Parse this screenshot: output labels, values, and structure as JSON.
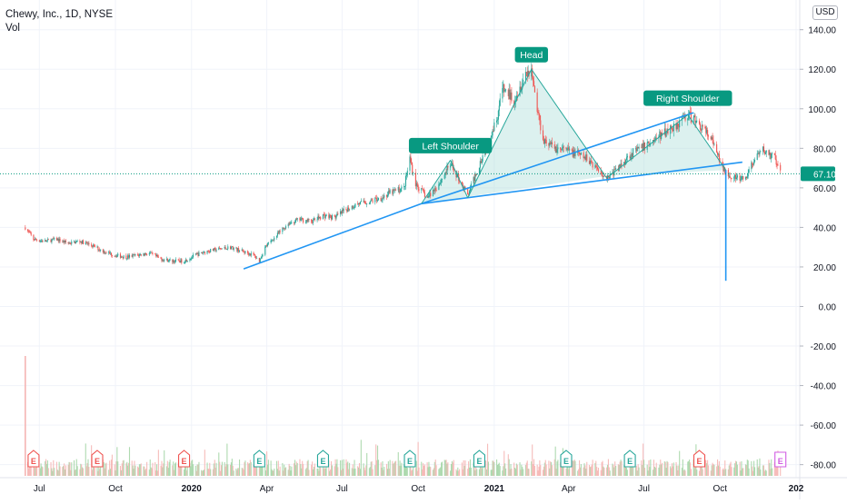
{
  "header": {
    "title": "Chewy, Inc., 1D, NYSE",
    "volume_label": "Vol",
    "currency": "USD"
  },
  "colors": {
    "up": "#26a69a",
    "down": "#ef5350",
    "trendline": "#2196f3",
    "pattern_fill": "#b2dfdb",
    "label_bg": "#089981",
    "last_price_bg": "#089981"
  },
  "chart_data": {
    "type": "line",
    "description_note": "",
    "x_ticks": [
      "Jul",
      "Oct",
      "2020",
      "Apr",
      "Jul",
      "Oct",
      "2021",
      "Apr",
      "Jul",
      "Oct",
      "202"
    ],
    "y_ticks": [
      "140.00",
      "120.00",
      "100.00",
      "80.00",
      "60.00",
      "40.00",
      "20.00",
      "0.00",
      "-20.00",
      "-40.00",
      "-60.00",
      "-80.00"
    ],
    "ylim": [
      -82,
      144
    ],
    "last_price": {
      "value": 67.1,
      "label": "67.10"
    },
    "series": [
      {
        "values": [
          [
            "2019-06-14",
            40
          ],
          [
            "2019-06-24",
            34
          ],
          [
            "2019-07-08",
            33
          ],
          [
            "2019-07-22",
            34
          ],
          [
            "2019-08-05",
            32
          ],
          [
            "2019-08-19",
            33
          ],
          [
            "2019-09-02",
            31
          ],
          [
            "2019-09-16",
            28
          ],
          [
            "2019-09-30",
            26
          ],
          [
            "2019-10-14",
            25
          ],
          [
            "2019-10-28",
            26
          ],
          [
            "2019-11-11",
            27
          ],
          [
            "2019-11-25",
            24
          ],
          [
            "2019-12-09",
            23
          ],
          [
            "2019-12-23",
            23
          ],
          [
            "2020-01-06",
            26
          ],
          [
            "2020-01-20",
            28
          ],
          [
            "2020-02-03",
            29
          ],
          [
            "2020-02-17",
            30
          ],
          [
            "2020-03-02",
            28
          ],
          [
            "2020-03-16",
            26
          ],
          [
            "2020-03-23",
            23
          ],
          [
            "2020-03-30",
            30
          ],
          [
            "2020-04-13",
            36
          ],
          [
            "2020-04-27",
            42
          ],
          [
            "2020-05-11",
            44
          ],
          [
            "2020-05-25",
            43
          ],
          [
            "2020-06-08",
            46
          ],
          [
            "2020-06-22",
            45
          ],
          [
            "2020-07-06",
            49
          ],
          [
            "2020-07-20",
            52
          ],
          [
            "2020-08-03",
            53
          ],
          [
            "2020-08-17",
            55
          ],
          [
            "2020-08-31",
            58
          ],
          [
            "2020-09-14",
            60
          ],
          [
            "2020-09-21",
            75
          ],
          [
            "2020-09-28",
            62
          ],
          [
            "2020-10-12",
            55
          ],
          [
            "2020-10-26",
            62
          ],
          [
            "2020-11-09",
            72
          ],
          [
            "2020-11-23",
            62
          ],
          [
            "2020-11-30",
            56
          ],
          [
            "2020-12-07",
            64
          ],
          [
            "2020-12-21",
            80
          ],
          [
            "2021-01-04",
            95
          ],
          [
            "2021-01-11",
            110
          ],
          [
            "2021-01-25",
            105
          ],
          [
            "2021-02-08",
            118
          ],
          [
            "2021-02-15",
            120
          ],
          [
            "2021-02-22",
            100
          ],
          [
            "2021-03-01",
            85
          ],
          [
            "2021-03-15",
            80
          ],
          [
            "2021-03-29",
            79
          ],
          [
            "2021-04-12",
            77
          ],
          [
            "2021-04-26",
            74
          ],
          [
            "2021-05-10",
            68
          ],
          [
            "2021-05-17",
            65
          ],
          [
            "2021-05-31",
            70
          ],
          [
            "2021-06-14",
            77
          ],
          [
            "2021-06-28",
            80
          ],
          [
            "2021-07-12",
            84
          ],
          [
            "2021-07-26",
            88
          ],
          [
            "2021-08-09",
            92
          ],
          [
            "2021-08-23",
            97
          ],
          [
            "2021-09-06",
            92
          ],
          [
            "2021-09-20",
            85
          ],
          [
            "2021-10-04",
            70
          ],
          [
            "2021-10-18",
            65
          ],
          [
            "2021-11-01",
            64
          ],
          [
            "2021-11-08",
            72
          ],
          [
            "2021-11-22",
            79
          ],
          [
            "2021-12-06",
            75
          ],
          [
            "2021-12-13",
            67
          ]
        ]
      }
    ],
    "annotations": {
      "labels": [
        {
          "text": "Left Shoulder",
          "date": "2020-11-09",
          "value": 74
        },
        {
          "text": "Head",
          "date": "2021-02-15",
          "value": 120
        },
        {
          "text": "Right Shoulder",
          "date": "2021-08-23",
          "value": 98
        }
      ],
      "trendlines": [
        {
          "from": [
            "2020-03-04",
            19
          ],
          "to": [
            "2020-10-05",
            52
          ]
        },
        {
          "from": [
            "2020-10-05",
            52
          ],
          "to": [
            "2021-10-28",
            73
          ]
        },
        {
          "from": [
            "2020-10-05",
            52
          ],
          "to": [
            "2021-08-30",
            98
          ]
        },
        {
          "from": [
            "2021-10-08",
            69
          ],
          "to": [
            "2021-10-08",
            13
          ]
        }
      ],
      "pattern_polygon": [
        [
          "2020-10-05",
          52
        ],
        [
          "2020-11-09",
          74
        ],
        [
          "2020-11-30",
          55
        ],
        [
          "2021-02-15",
          120
        ],
        [
          "2021-05-17",
          65
        ],
        [
          "2021-08-23",
          97
        ],
        [
          "2021-10-08",
          69
        ],
        [
          "2021-05-17",
          66
        ]
      ]
    },
    "volume": {
      "ylim": [
        0,
        100
      ],
      "spike": {
        "date": "2019-06-14",
        "value": 100
      }
    },
    "events": [
      {
        "date": "2019-06-24",
        "type": "E",
        "kind": "earnings"
      },
      {
        "date": "2019-09-09",
        "type": "E",
        "kind": "earnings"
      },
      {
        "date": "2019-12-23",
        "type": "E",
        "kind": "earnings"
      },
      {
        "date": "2020-03-23",
        "type": "E",
        "kind": "earnings-beat"
      },
      {
        "date": "2020-06-08",
        "type": "E",
        "kind": "earnings-beat"
      },
      {
        "date": "2020-09-21",
        "type": "E",
        "kind": "earnings-beat"
      },
      {
        "date": "2020-12-14",
        "type": "E",
        "kind": "earnings-beat"
      },
      {
        "date": "2021-03-29",
        "type": "E",
        "kind": "earnings-beat"
      },
      {
        "date": "2021-06-14",
        "type": "E",
        "kind": "earnings-beat"
      },
      {
        "date": "2021-09-06",
        "type": "E",
        "kind": "earnings"
      },
      {
        "date": "2021-12-13",
        "type": "E",
        "kind": "earnings-upcoming"
      }
    ]
  }
}
